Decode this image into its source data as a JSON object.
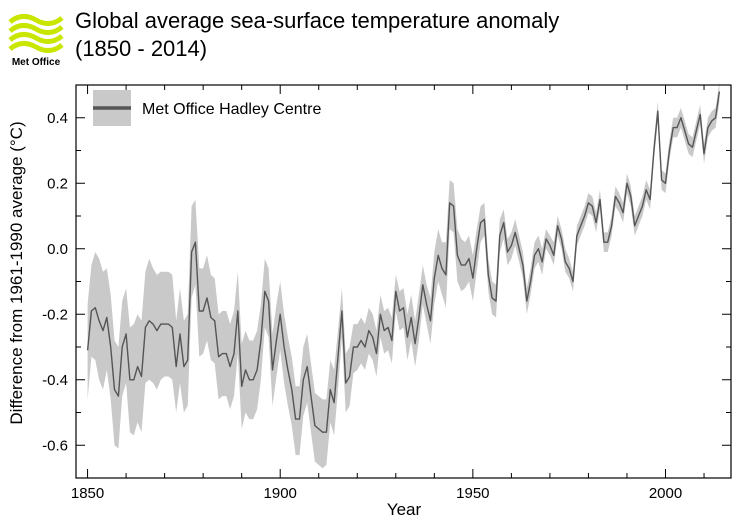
{
  "logo": {
    "text": "Met Office",
    "brand_color": "#c8e600"
  },
  "title_line1": "Global average sea-surface temperature anomaly",
  "title_line2": "(1850 - 2014)",
  "chart_data": {
    "type": "line",
    "xlabel": "Year",
    "ylabel": "Difference from 1961-1990 average (°C)",
    "xlim": [
      1847,
      2017
    ],
    "ylim": [
      -0.7,
      0.5
    ],
    "xticks": [
      1850,
      1900,
      1950,
      2000
    ],
    "yticks": [
      -0.6,
      -0.4,
      -0.2,
      0.0,
      0.2,
      0.4
    ],
    "ytick_labels": [
      "-0.6",
      "-0.4",
      "-0.2",
      "0.0",
      "0.2",
      "0.4"
    ],
    "grid": false,
    "legend": {
      "position": "top-left",
      "label": "Met Office Hadley Centre"
    },
    "colors": {
      "line": "#555555",
      "band": "#c9c9c9"
    },
    "series": [
      {
        "name": "Met Office Hadley Centre",
        "x": [
          1850,
          1851,
          1852,
          1853,
          1854,
          1855,
          1856,
          1857,
          1858,
          1859,
          1860,
          1861,
          1862,
          1863,
          1864,
          1865,
          1866,
          1867,
          1868,
          1869,
          1870,
          1871,
          1872,
          1873,
          1874,
          1875,
          1876,
          1877,
          1878,
          1879,
          1880,
          1881,
          1882,
          1883,
          1884,
          1885,
          1886,
          1887,
          1888,
          1889,
          1890,
          1891,
          1892,
          1893,
          1894,
          1895,
          1896,
          1897,
          1898,
          1899,
          1900,
          1901,
          1902,
          1903,
          1904,
          1905,
          1906,
          1907,
          1908,
          1909,
          1910,
          1911,
          1912,
          1913,
          1914,
          1915,
          1916,
          1917,
          1918,
          1919,
          1920,
          1921,
          1922,
          1923,
          1924,
          1925,
          1926,
          1927,
          1928,
          1929,
          1930,
          1931,
          1932,
          1933,
          1934,
          1935,
          1936,
          1937,
          1938,
          1939,
          1940,
          1941,
          1942,
          1943,
          1944,
          1945,
          1946,
          1947,
          1948,
          1949,
          1950,
          1951,
          1952,
          1953,
          1954,
          1955,
          1956,
          1957,
          1958,
          1959,
          1960,
          1961,
          1962,
          1963,
          1964,
          1965,
          1966,
          1967,
          1968,
          1969,
          1970,
          1971,
          1972,
          1973,
          1974,
          1975,
          1976,
          1977,
          1978,
          1979,
          1980,
          1981,
          1982,
          1983,
          1984,
          1985,
          1986,
          1987,
          1988,
          1989,
          1990,
          1991,
          1992,
          1993,
          1994,
          1995,
          1996,
          1997,
          1998,
          1999,
          2000,
          2001,
          2002,
          2003,
          2004,
          2005,
          2006,
          2007,
          2008,
          2009,
          2010,
          2011,
          2012,
          2013,
          2014
        ],
        "values": [
          -0.31,
          -0.19,
          -0.18,
          -0.22,
          -0.25,
          -0.21,
          -0.3,
          -0.43,
          -0.45,
          -0.3,
          -0.26,
          -0.4,
          -0.4,
          -0.36,
          -0.39,
          -0.24,
          -0.22,
          -0.23,
          -0.25,
          -0.23,
          -0.23,
          -0.23,
          -0.24,
          -0.36,
          -0.26,
          -0.36,
          -0.34,
          -0.01,
          0.02,
          -0.19,
          -0.19,
          -0.15,
          -0.21,
          -0.22,
          -0.33,
          -0.32,
          -0.32,
          -0.36,
          -0.32,
          -0.19,
          -0.42,
          -0.37,
          -0.4,
          -0.4,
          -0.37,
          -0.28,
          -0.13,
          -0.16,
          -0.37,
          -0.28,
          -0.2,
          -0.3,
          -0.37,
          -0.43,
          -0.52,
          -0.52,
          -0.4,
          -0.36,
          -0.45,
          -0.54,
          -0.55,
          -0.56,
          -0.56,
          -0.43,
          -0.47,
          -0.33,
          -0.19,
          -0.41,
          -0.39,
          -0.3,
          -0.3,
          -0.28,
          -0.3,
          -0.25,
          -0.27,
          -0.32,
          -0.2,
          -0.25,
          -0.24,
          -0.28,
          -0.13,
          -0.19,
          -0.18,
          -0.27,
          -0.21,
          -0.29,
          -0.21,
          -0.11,
          -0.17,
          -0.22,
          -0.09,
          -0.02,
          -0.06,
          -0.08,
          0.14,
          0.13,
          -0.02,
          -0.05,
          -0.05,
          -0.03,
          -0.09,
          0.0,
          0.08,
          0.09,
          -0.08,
          -0.15,
          -0.16,
          0.04,
          0.08,
          -0.01,
          0.01,
          0.05,
          0.0,
          -0.05,
          -0.16,
          -0.1,
          -0.02,
          0.0,
          -0.04,
          0.03,
          0.01,
          -0.02,
          0.07,
          0.03,
          -0.04,
          -0.06,
          -0.1,
          0.04,
          0.07,
          0.1,
          0.14,
          0.13,
          0.08,
          0.15,
          0.02,
          0.02,
          0.07,
          0.16,
          0.14,
          0.11,
          0.2,
          0.16,
          0.07,
          0.1,
          0.13,
          0.18,
          0.15,
          0.3,
          0.42,
          0.21,
          0.2,
          0.3,
          0.37,
          0.37,
          0.4,
          0.36,
          0.32,
          0.31,
          0.36,
          0.41,
          0.29,
          0.37,
          0.39,
          0.4,
          0.48
        ],
        "upper": [
          -0.17,
          -0.05,
          -0.01,
          -0.03,
          -0.07,
          -0.06,
          -0.14,
          -0.28,
          -0.3,
          -0.16,
          -0.12,
          -0.24,
          -0.23,
          -0.2,
          -0.22,
          -0.07,
          -0.03,
          -0.06,
          -0.08,
          -0.07,
          -0.07,
          -0.07,
          -0.08,
          -0.22,
          -0.12,
          -0.22,
          -0.2,
          0.13,
          0.15,
          -0.06,
          -0.06,
          -0.02,
          -0.08,
          -0.09,
          -0.2,
          -0.19,
          -0.19,
          -0.23,
          -0.19,
          -0.07,
          -0.29,
          -0.25,
          -0.28,
          -0.28,
          -0.25,
          -0.17,
          -0.03,
          -0.06,
          -0.26,
          -0.17,
          -0.1,
          -0.2,
          -0.27,
          -0.33,
          -0.42,
          -0.42,
          -0.3,
          -0.26,
          -0.35,
          -0.44,
          -0.45,
          -0.46,
          -0.46,
          -0.34,
          -0.37,
          -0.25,
          -0.12,
          -0.32,
          -0.3,
          -0.23,
          -0.23,
          -0.21,
          -0.23,
          -0.18,
          -0.2,
          -0.25,
          -0.14,
          -0.19,
          -0.18,
          -0.21,
          -0.08,
          -0.13,
          -0.12,
          -0.2,
          -0.14,
          -0.22,
          -0.14,
          -0.05,
          -0.11,
          -0.15,
          -0.01,
          0.06,
          0.02,
          0.02,
          0.21,
          0.2,
          0.06,
          0.03,
          0.02,
          0.04,
          -0.02,
          0.06,
          0.13,
          0.14,
          -0.03,
          -0.1,
          -0.11,
          0.09,
          0.12,
          0.03,
          0.05,
          0.09,
          0.04,
          -0.01,
          -0.12,
          -0.06,
          0.02,
          0.04,
          0.0,
          0.06,
          0.04,
          0.02,
          0.1,
          0.06,
          0.0,
          -0.03,
          -0.07,
          0.07,
          0.1,
          0.13,
          0.17,
          0.16,
          0.11,
          0.18,
          0.05,
          0.05,
          0.1,
          0.19,
          0.17,
          0.14,
          0.23,
          0.19,
          0.1,
          0.13,
          0.16,
          0.21,
          0.18,
          0.33,
          0.45,
          0.24,
          0.23,
          0.33,
          0.4,
          0.4,
          0.43,
          0.39,
          0.35,
          0.34,
          0.39,
          0.44,
          0.32,
          0.4,
          0.42,
          0.43,
          0.51
        ],
        "lower": [
          -0.46,
          -0.33,
          -0.34,
          -0.4,
          -0.43,
          -0.37,
          -0.46,
          -0.6,
          -0.61,
          -0.45,
          -0.41,
          -0.56,
          -0.57,
          -0.53,
          -0.56,
          -0.41,
          -0.4,
          -0.41,
          -0.43,
          -0.4,
          -0.39,
          -0.39,
          -0.4,
          -0.5,
          -0.41,
          -0.5,
          -0.48,
          -0.15,
          -0.11,
          -0.33,
          -0.32,
          -0.28,
          -0.34,
          -0.35,
          -0.46,
          -0.45,
          -0.45,
          -0.49,
          -0.45,
          -0.32,
          -0.55,
          -0.5,
          -0.52,
          -0.52,
          -0.49,
          -0.4,
          -0.24,
          -0.27,
          -0.48,
          -0.39,
          -0.31,
          -0.41,
          -0.48,
          -0.54,
          -0.63,
          -0.63,
          -0.51,
          -0.47,
          -0.56,
          -0.65,
          -0.66,
          -0.67,
          -0.66,
          -0.53,
          -0.57,
          -0.43,
          -0.27,
          -0.5,
          -0.48,
          -0.38,
          -0.37,
          -0.35,
          -0.37,
          -0.32,
          -0.34,
          -0.39,
          -0.27,
          -0.32,
          -0.31,
          -0.35,
          -0.19,
          -0.25,
          -0.24,
          -0.34,
          -0.28,
          -0.36,
          -0.28,
          -0.17,
          -0.23,
          -0.29,
          -0.17,
          -0.1,
          -0.14,
          -0.18,
          0.06,
          0.05,
          -0.1,
          -0.13,
          -0.12,
          -0.1,
          -0.16,
          -0.07,
          0.02,
          0.04,
          -0.13,
          -0.2,
          -0.21,
          -0.01,
          0.03,
          -0.05,
          -0.03,
          0.01,
          -0.04,
          -0.09,
          -0.2,
          -0.14,
          -0.06,
          -0.04,
          -0.08,
          0.0,
          -0.02,
          -0.05,
          0.04,
          0.0,
          -0.07,
          -0.09,
          -0.13,
          0.01,
          0.04,
          0.07,
          0.11,
          0.1,
          0.05,
          0.12,
          -0.01,
          -0.01,
          0.04,
          0.13,
          0.11,
          0.08,
          0.17,
          0.13,
          0.04,
          0.07,
          0.1,
          0.15,
          0.12,
          0.27,
          0.39,
          0.18,
          0.17,
          0.27,
          0.34,
          0.34,
          0.37,
          0.33,
          0.29,
          0.28,
          0.33,
          0.38,
          0.26,
          0.34,
          0.36,
          0.37,
          0.45
        ]
      }
    ]
  }
}
